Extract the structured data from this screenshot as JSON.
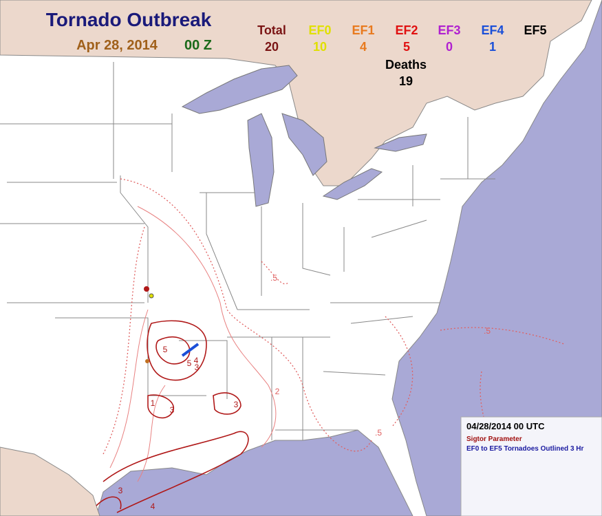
{
  "header": {
    "title": "Tornado Outbreak",
    "date": "Apr 28, 2014",
    "time": "00 Z"
  },
  "counts": [
    {
      "label": "Total",
      "value": 20,
      "color": "#7a1414"
    },
    {
      "label": "EF0",
      "value": 10,
      "color": "#e0e000"
    },
    {
      "label": "EF1",
      "value": 4,
      "color": "#e87a1e"
    },
    {
      "label": "EF2",
      "value": 5,
      "color": "#e01010"
    },
    {
      "label": "EF3",
      "value": 0,
      "color": "#b020d0"
    },
    {
      "label": "EF4",
      "value": 1,
      "color": "#1a4fd8"
    },
    {
      "label": "EF5",
      "color": "#000000"
    }
  ],
  "deaths": {
    "label": "Deaths",
    "value": 19
  },
  "legend": {
    "timestamp": "04/28/2014 00 UTC",
    "parameter": "Sigtor Parameter",
    "tornadoes": "EF0 to EF5 Tornadoes Outlined 3 Hr"
  },
  "contour_labels": [
    ".5",
    "1",
    "2",
    "3",
    "4",
    "5"
  ]
}
